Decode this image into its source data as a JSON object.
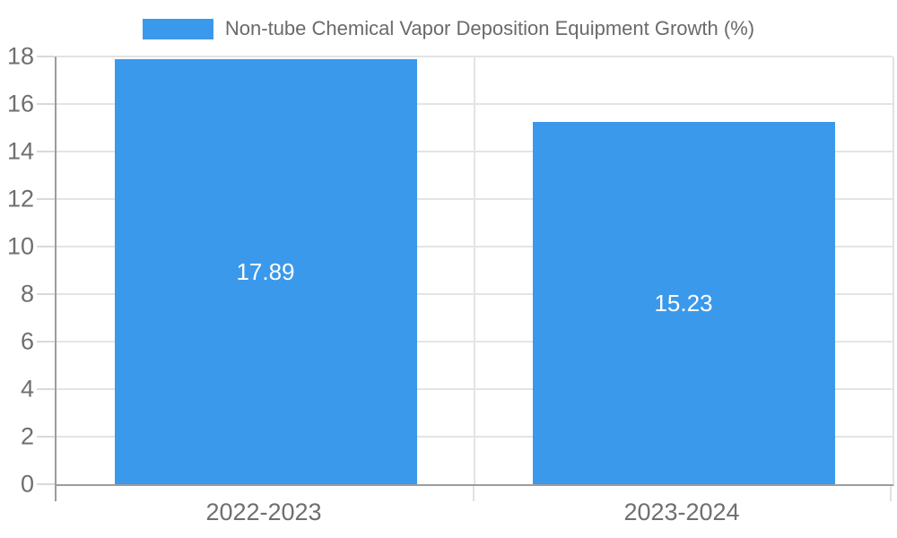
{
  "legend": {
    "label": "Non-tube Chemical Vapor Deposition Equipment Growth (%)"
  },
  "colors": {
    "bar": "#3B99EC",
    "bar_value_label": "#FFFFFF",
    "legend_text": "#6A6A6A",
    "axis_text": "#6F6F6F",
    "gridline": "#E4E4E4",
    "axis_line": "#9C9C9C"
  },
  "chart_data": {
    "type": "bar",
    "title": "Non-tube Chemical Vapor Deposition Equipment Growth (%)",
    "categories": [
      "2022-2023",
      "2023-2024"
    ],
    "values": [
      17.89,
      15.23
    ],
    "value_labels": [
      "17.89",
      "15.23"
    ],
    "xlabel": "",
    "ylabel": "",
    "ylim": [
      0,
      18
    ],
    "yticks": [
      0,
      2,
      4,
      6,
      8,
      10,
      12,
      14,
      16,
      18
    ],
    "grid": true,
    "legend_position": "top-center",
    "value_label_position": "inside-center"
  }
}
